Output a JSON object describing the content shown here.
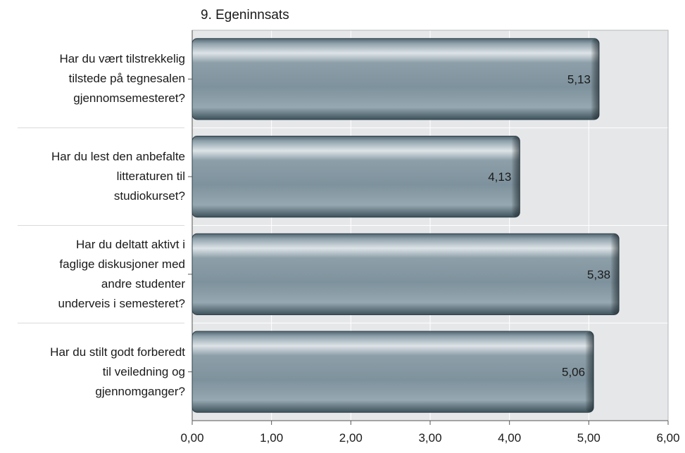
{
  "chart_data": {
    "type": "bar",
    "orientation": "horizontal",
    "title": "9. Egeninnsats",
    "xlabel": "",
    "ylabel": "",
    "categories": [
      [
        "Har du vært tilstrekkelig",
        "tilstede på tegnesalen",
        "gjennomsemesteret?"
      ],
      [
        "Har du lest den anbefalte",
        "litteraturen til",
        "studiokurset?"
      ],
      [
        "Har du deltatt aktivt i",
        "faglige diskusjoner med",
        "andre studenter",
        "underveis i semesteret?"
      ],
      [
        "Har du stilt godt forberedt",
        "til veiledning og",
        "gjennomganger?"
      ]
    ],
    "values": [
      5.13,
      4.13,
      5.38,
      5.06
    ],
    "value_labels": [
      "5,13",
      "4,13",
      "5,38",
      "5,06"
    ],
    "xlim": [
      0,
      6
    ],
    "xticks": [
      "0,00",
      "1,00",
      "2,00",
      "3,00",
      "4,00",
      "5,00",
      "6,00"
    ],
    "grid": true,
    "legend": "none",
    "colors": {
      "bar_light": "#b3c0c7",
      "bar_mid": "#8c9ea8",
      "bar_dark": "#3f5560",
      "plot_bg": "#e6e7e9",
      "grid": "#ffffff",
      "axis": "#555555"
    }
  }
}
